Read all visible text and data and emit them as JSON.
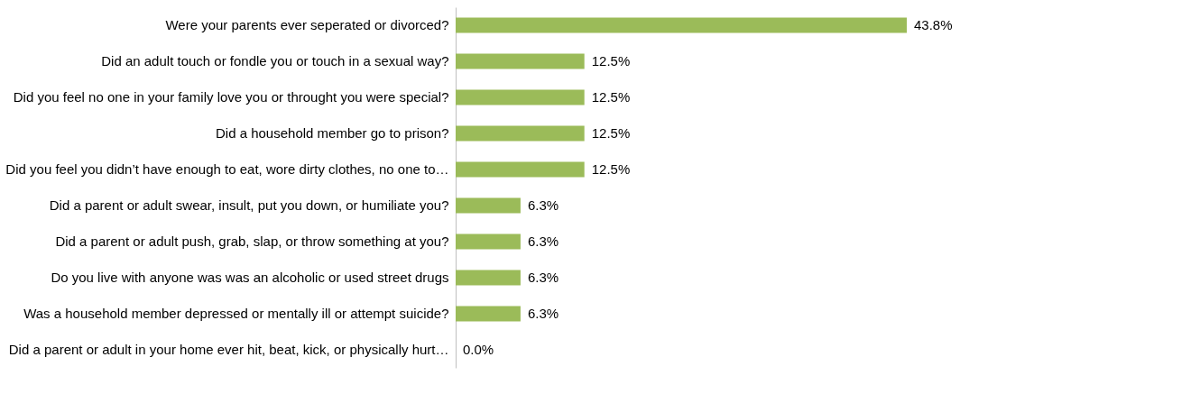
{
  "chart_data": {
    "type": "bar",
    "orientation": "horizontal",
    "color": "#9bbb59",
    "categories": [
      "Were your parents ever seperated or divorced?",
      "Did an adult touch or fondle you or touch in a sexual way?",
      "Did you feel no one in your family love you or throught you were special?",
      "Did a household member go to prison?",
      "Did you feel you didn’t have enough to eat, wore dirty clothes, no one to…",
      "Did a parent or adult swear, insult, put you down, or humiliate you?",
      "Did a parent or adult push, grab, slap, or throw something at you?",
      "Do you live with anyone was was an alcoholic or used street drugs",
      "Was a household member depressed or mentally ill or attempt suicide?",
      "Did a parent or adult in your home ever hit, beat, kick, or physically hurt…"
    ],
    "values": [
      43.8,
      12.5,
      12.5,
      12.5,
      12.5,
      6.3,
      6.3,
      6.3,
      6.3,
      0.0
    ],
    "value_labels": [
      "43.8%",
      "12.5%",
      "12.5%",
      "12.5%",
      "12.5%",
      "6.3%",
      "6.3%",
      "6.3%",
      "6.3%",
      "0.0%"
    ]
  }
}
